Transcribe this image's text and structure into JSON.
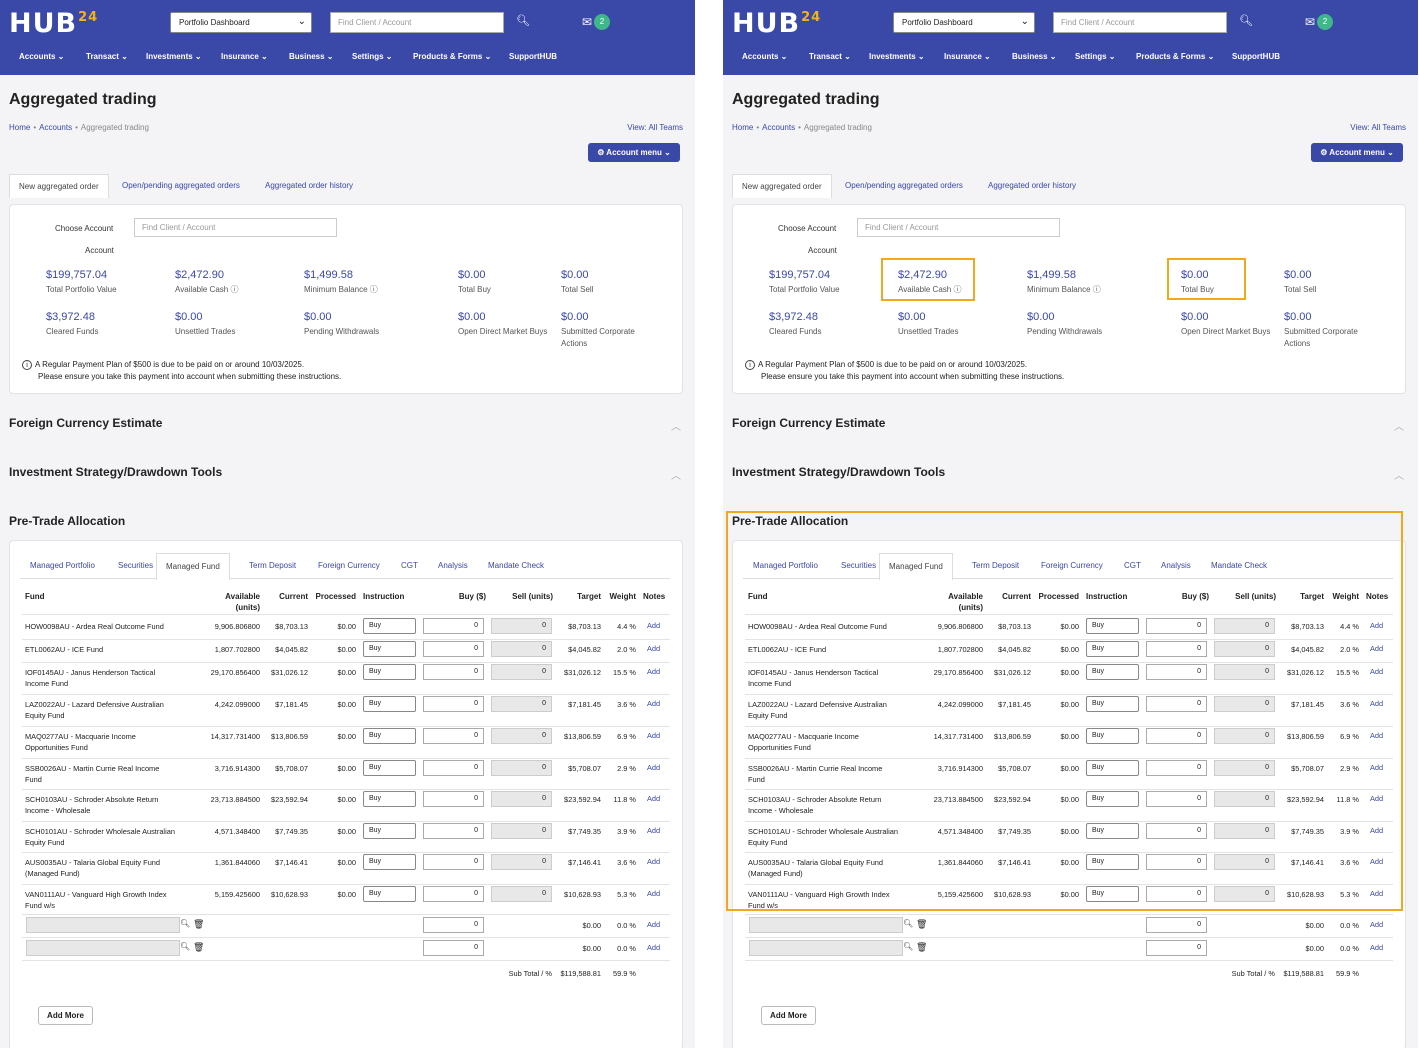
{
  "brand": {
    "name": "HUB",
    "superscript": "24"
  },
  "header": {
    "dashboard_select": "Portfolio Dashboard",
    "search_placeholder": "Find Client / Account",
    "mail_count": "2"
  },
  "nav": [
    "Accounts ⌄",
    "Transact ⌄",
    "Investments ⌄",
    "Insurance ⌄",
    "Business ⌄",
    "Settings ⌄",
    "Products & Forms ⌄",
    "SupportHUB"
  ],
  "page": {
    "title": "Aggregated trading",
    "breadcrumb": [
      "Home",
      "Accounts",
      "Aggregated trading"
    ],
    "view_all": "View: All Teams",
    "account_menu": "⚙ Account menu ⌄"
  },
  "order_tabs": [
    "New aggregated order",
    "Open/pending aggregated orders",
    "Aggregated order history"
  ],
  "account_section": {
    "choose_label": "Choose Account",
    "account_label": "Account",
    "find_placeholder": "Find Client / Account",
    "metrics": [
      {
        "value": "$199,757.04",
        "label": "Total Portfolio Value"
      },
      {
        "value": "$2,472.90",
        "label": "Available Cash ⓘ"
      },
      {
        "value": "$1,499.58",
        "label": "Minimum Balance ⓘ"
      },
      {
        "value": "$0.00",
        "label": "Total Buy"
      },
      {
        "value": "$0.00",
        "label": "Total Sell"
      },
      {
        "value": "$3,972.48",
        "label": "Cleared Funds"
      },
      {
        "value": "$0.00",
        "label": "Unsettled Trades"
      },
      {
        "value": "$0.00",
        "label": "Pending Withdrawals"
      },
      {
        "value": "$0.00",
        "label": "Open Direct Market Buys"
      },
      {
        "value": "$0.00",
        "label": "Submitted Corporate Actions"
      }
    ],
    "note_line1": "A Regular Payment Plan of $500 is due to be paid on or around 10/03/2025.",
    "note_line2": "Please ensure you take this payment into account when submitting these instructions."
  },
  "sections": {
    "foreign": "Foreign Currency Estimate",
    "strategy": "Investment Strategy/Drawdown Tools",
    "pretrade": "Pre-Trade Allocation"
  },
  "alloc_tabs": [
    "Managed Portfolio",
    "Securities",
    "Managed Fund",
    "Term Deposit",
    "Foreign Currency",
    "CGT",
    "Analysis",
    "Mandate Check"
  ],
  "columns": [
    "Fund",
    "Available (units)",
    "Current",
    "Processed",
    "Instruction",
    "Buy ($)",
    "Sell (units)",
    "Target",
    "Weight",
    "Notes"
  ],
  "funds": [
    {
      "fund": "HOW0098AU - Ardea Real Outcome Fund",
      "units": "9,906.806800",
      "current": "$8,703.13",
      "processed": "$0.00",
      "instruction": "Buy",
      "buy": "0",
      "sell": "0",
      "target": "$8,703.13",
      "weight": "4.4 %",
      "notes": "Add"
    },
    {
      "fund": "ETL0062AU - ICE Fund",
      "units": "1,807.702800",
      "current": "$4,045.82",
      "processed": "$0.00",
      "instruction": "Buy",
      "buy": "0",
      "sell": "0",
      "target": "$4,045.82",
      "weight": "2.0 %",
      "notes": "Add"
    },
    {
      "fund": "IOF0145AU - Janus Henderson Tactical Income Fund",
      "units": "29,170.856400",
      "current": "$31,026.12",
      "processed": "$0.00",
      "instruction": "Buy",
      "buy": "0",
      "sell": "0",
      "target": "$31,026.12",
      "weight": "15.5 %",
      "notes": "Add"
    },
    {
      "fund": "LAZ0022AU - Lazard Defensive Australian Equity Fund",
      "units": "4,242.099000",
      "current": "$7,181.45",
      "processed": "$0.00",
      "instruction": "Buy",
      "buy": "0",
      "sell": "0",
      "target": "$7,181.45",
      "weight": "3.6 %",
      "notes": "Add"
    },
    {
      "fund": "MAQ0277AU - Macquarie Income Opportunities Fund",
      "units": "14,317.731400",
      "current": "$13,806.59",
      "processed": "$0.00",
      "instruction": "Buy",
      "buy": "0",
      "sell": "0",
      "target": "$13,806.59",
      "weight": "6.9 %",
      "notes": "Add"
    },
    {
      "fund": "SSB0026AU - Martin Currie Real Income Fund",
      "units": "3,716.914300",
      "current": "$5,708.07",
      "processed": "$0.00",
      "instruction": "Buy",
      "buy": "0",
      "sell": "0",
      "target": "$5,708.07",
      "weight": "2.9 %",
      "notes": "Add"
    },
    {
      "fund": "SCH0103AU - Schroder Absolute Return Income - Wholesale",
      "units": "23,713.884500",
      "current": "$23,592.94",
      "processed": "$0.00",
      "instruction": "Buy",
      "buy": "0",
      "sell": "0",
      "target": "$23,592.94",
      "weight": "11.8 %",
      "notes": "Add"
    },
    {
      "fund": "SCH0101AU - Schroder Wholesale Australian Equity Fund",
      "units": "4,571.348400",
      "current": "$7,749.35",
      "processed": "$0.00",
      "instruction": "Buy",
      "buy": "0",
      "sell": "0",
      "target": "$7,749.35",
      "weight": "3.9 %",
      "notes": "Add"
    },
    {
      "fund": "AUS0035AU - Talaria Global Equity Fund (Managed Fund)",
      "units": "1,361.844060",
      "current": "$7,146.41",
      "processed": "$0.00",
      "instruction": "Buy",
      "buy": "0",
      "sell": "0",
      "target": "$7,146.41",
      "weight": "3.6 %",
      "notes": "Add"
    },
    {
      "fund": "VAN0111AU - Vanguard High Growth Index Fund w/s",
      "units": "5,159.425600",
      "current": "$10,628.93",
      "processed": "$0.00",
      "instruction": "Buy",
      "buy": "0",
      "sell": "0",
      "target": "$10,628.93",
      "weight": "5.3 %",
      "notes": "Add"
    }
  ],
  "empty_rows": [
    {
      "buy": "0",
      "target": "$0.00",
      "weight": "0.0 %",
      "notes": "Add"
    },
    {
      "buy": "0",
      "target": "$0.00",
      "weight": "0.0 %",
      "notes": "Add"
    }
  ],
  "subtotal": {
    "label": "Sub Total / %",
    "target": "$119,588.81",
    "weight": "59.9 %"
  },
  "add_more": "Add More",
  "highlight_color": "#f0a81c"
}
